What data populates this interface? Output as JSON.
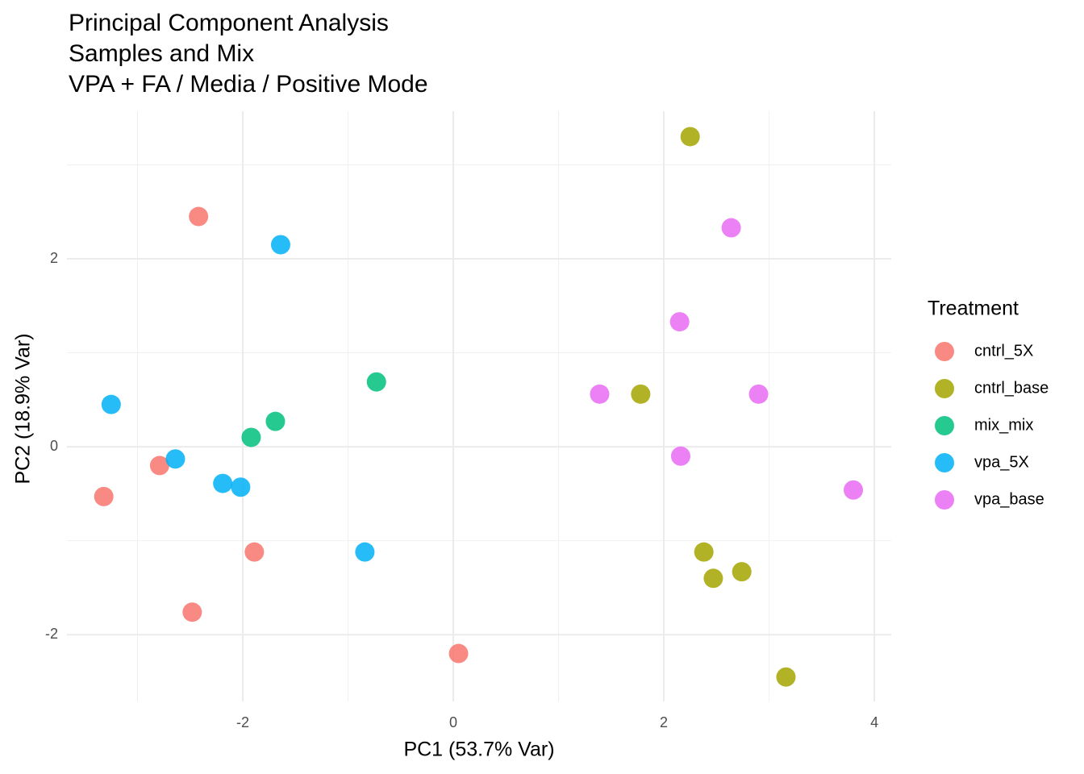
{
  "chart_data": {
    "type": "scatter",
    "title": [
      "Principal Component Analysis",
      "Samples and Mix",
      "VPA + FA / Media / Positive Mode"
    ],
    "x_label": "PC1 (53.7% Var)",
    "y_label": "PC2 (18.9% Var)",
    "legend_title": "Treatment",
    "legend_position": "right",
    "xlim": [
      -3.67,
      4.16
    ],
    "ylim": [
      -2.71,
      3.57
    ],
    "xticks": [
      -2,
      0,
      2,
      4
    ],
    "yticks": [
      -2,
      0,
      2
    ],
    "grid": true,
    "minor_grid": true,
    "series": [
      {
        "name": "cntrl_5X",
        "color": "#F8766D",
        "x": [
          -2.42,
          -3.32,
          -2.79,
          -1.89,
          -2.48,
          0.05
        ],
        "values": [
          2.45,
          -0.53,
          -0.2,
          -1.12,
          -1.76,
          -2.2
        ]
      },
      {
        "name": "cntrl_base",
        "color": "#A3A500",
        "x": [
          2.25,
          1.78,
          2.38,
          2.47,
          2.74,
          3.16
        ],
        "values": [
          3.3,
          0.56,
          -1.12,
          -1.4,
          -1.33,
          -2.45
        ]
      },
      {
        "name": "mix_mix",
        "color": "#00BF7D",
        "x": [
          -0.73,
          -1.69,
          -1.92
        ],
        "values": [
          0.69,
          0.27,
          0.1
        ]
      },
      {
        "name": "vpa_5X",
        "color": "#00B0F6",
        "x": [
          -1.64,
          -3.25,
          -2.64,
          -2.19,
          -2.02,
          -0.84
        ],
        "values": [
          2.15,
          0.45,
          -0.13,
          -0.39,
          -0.43,
          -1.12
        ]
      },
      {
        "name": "vpa_base",
        "color": "#E76BF3",
        "x": [
          2.64,
          2.15,
          1.39,
          2.9,
          2.16,
          3.8
        ],
        "values": [
          2.33,
          1.33,
          0.56,
          0.56,
          -0.1,
          -0.46
        ]
      }
    ]
  }
}
